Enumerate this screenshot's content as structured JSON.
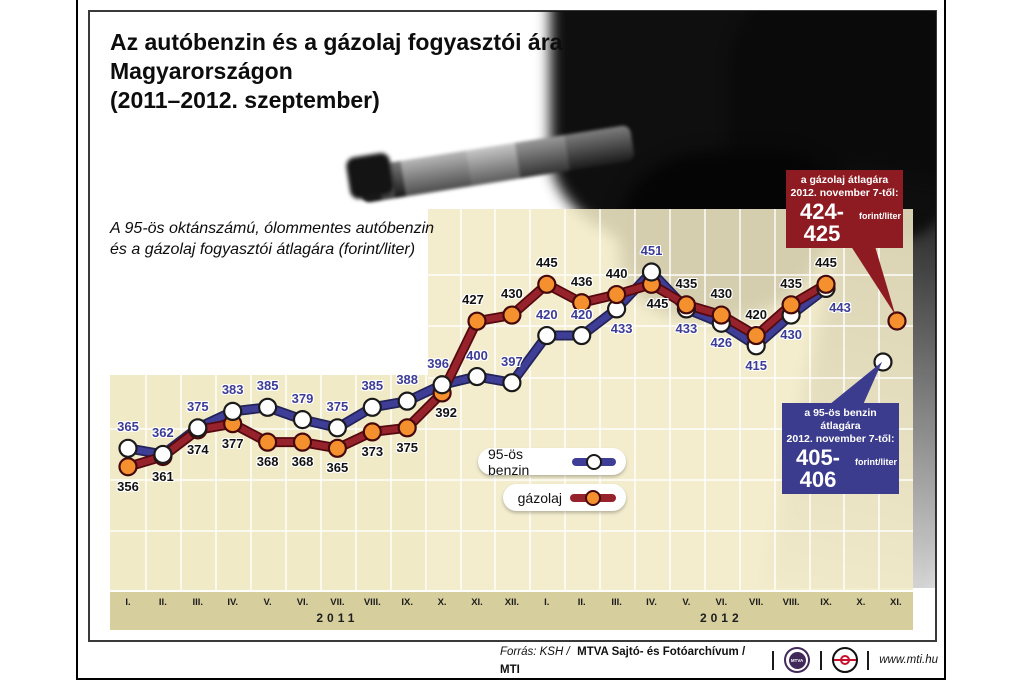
{
  "title": {
    "line1": "Az autóbenzin és a gázolaj fogyasztói ára",
    "line2": "Magyarországon",
    "line3": "(2011–2012. szeptember)"
  },
  "subtitle": {
    "line1": "A 95-ös oktánszámú, ólommentes autóbenzin",
    "line2": "és a gázolaj fogyasztói átlagára (forint/liter)"
  },
  "chart_data": {
    "type": "line",
    "unit": "forint/liter",
    "ylim": [
      345,
      465
    ],
    "grid": true,
    "x_axis": {
      "groups": [
        {
          "year": "2011",
          "months": [
            "I.",
            "II.",
            "III.",
            "IV.",
            "V.",
            "VI.",
            "VII.",
            "VIII.",
            "IX.",
            "X.",
            "XI.",
            "XII."
          ]
        },
        {
          "year": "2012",
          "months": [
            "I.",
            "II.",
            "III.",
            "IV.",
            "V.",
            "VI.",
            "VII.",
            "VIII.",
            "IX.",
            "X.",
            "XI."
          ]
        }
      ]
    },
    "series": [
      {
        "name": "95-ös benzin",
        "line_color": "#3e3e96",
        "line_edge": "#23235a",
        "marker_fill": "#ffffff",
        "marker_edge": "#1a1a1a",
        "label_color": "#3c3c96",
        "values": [
          365,
          362,
          375,
          383,
          385,
          379,
          375,
          385,
          388,
          396,
          400,
          397,
          420,
          420,
          433,
          451,
          433,
          426,
          415,
          430,
          443
        ],
        "label_pos": [
          "a",
          "a",
          "a",
          "a",
          "a",
          "a",
          "a",
          "a",
          "a",
          "a",
          "a",
          "a",
          "a",
          "a",
          "b",
          "a",
          "b",
          "b",
          "b",
          "b",
          "b"
        ],
        "label_dx": [
          0,
          0,
          0,
          0,
          0,
          0,
          0,
          0,
          0,
          -4,
          0,
          0,
          0,
          0,
          5,
          0,
          0,
          0,
          0,
          0,
          14
        ]
      },
      {
        "name": "gázolaj",
        "line_color": "#96232b",
        "line_edge": "#55090f",
        "marker_fill": "#f5902e",
        "marker_edge": "#45090c",
        "label_color": "#111111",
        "values": [
          356,
          361,
          374,
          377,
          368,
          368,
          365,
          373,
          375,
          392,
          427,
          430,
          445,
          436,
          440,
          445,
          435,
          430,
          420,
          435,
          445
        ],
        "label_pos": [
          "b",
          "b",
          "b",
          "b",
          "b",
          "b",
          "b",
          "b",
          "b",
          "b",
          "a",
          "a",
          "a",
          "a",
          "a",
          "b",
          "a",
          "a",
          "a",
          "a",
          "a"
        ],
        "label_dx": [
          0,
          0,
          0,
          0,
          0,
          0,
          0,
          0,
          0,
          4,
          -4,
          0,
          0,
          0,
          0,
          6,
          0,
          0,
          0,
          0,
          0
        ]
      }
    ],
    "extra_points": [
      {
        "series": 1,
        "x": 897,
        "y": 321
      },
      {
        "series": 0,
        "x": 883,
        "y": 362
      }
    ]
  },
  "legend": [
    {
      "label": "95-ös benzin"
    },
    {
      "label": "gázolaj"
    }
  ],
  "callouts": {
    "gazolaj": {
      "line1": "a gázolaj átlagára",
      "line2": "2012. november 7-től:",
      "value": "424-425",
      "unit": "forint/liter",
      "bg": "#8e1b21"
    },
    "benzin": {
      "line1": "a 95-ös benzin átlagára",
      "line2": "2012. november 7-től:",
      "value": "405-406",
      "unit": "forint/liter",
      "bg": "#3c3c8e"
    }
  },
  "footer": {
    "source_prefix": "Forrás: KSH /",
    "source_bold": "MTVA Sajtó- és Fotóarchívum / MTI",
    "url": "www.mti.hu",
    "mtva_logo_text": "MTVA"
  }
}
